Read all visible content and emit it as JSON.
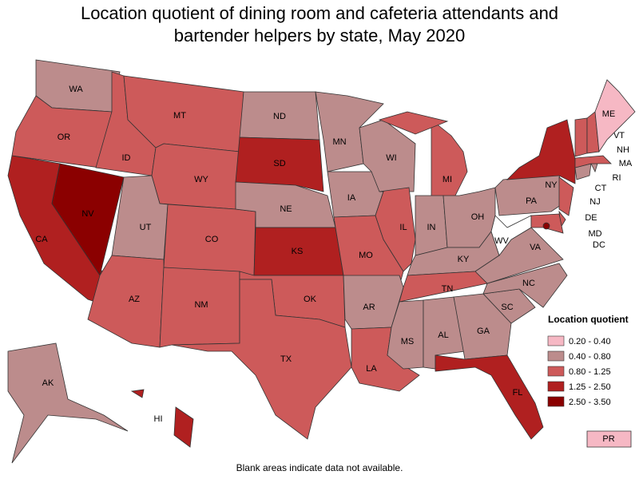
{
  "title": "Location quotient of dining room and cafeteria attendants and bartender helpers by state, May 2020",
  "legend": {
    "title": "Location quotient",
    "bins": [
      {
        "label": "0.20 - 0.40",
        "color": "#f6b8c4"
      },
      {
        "label": "0.40 - 0.80",
        "color": "#bc8c8c"
      },
      {
        "label": "0.80 - 1.25",
        "color": "#cd5a5a"
      },
      {
        "label": "1.25 - 2.50",
        "color": "#b02020"
      },
      {
        "label": "2.50 - 3.50",
        "color": "#8b0000"
      }
    ]
  },
  "states": [
    {
      "label": "WA",
      "bin": 1
    },
    {
      "label": "OR",
      "bin": 2
    },
    {
      "label": "CA",
      "bin": 3
    },
    {
      "label": "NV",
      "bin": 4
    },
    {
      "label": "ID",
      "bin": 2
    },
    {
      "label": "MT",
      "bin": 2
    },
    {
      "label": "WY",
      "bin": 2
    },
    {
      "label": "UT",
      "bin": 1
    },
    {
      "label": "CO",
      "bin": 2
    },
    {
      "label": "AZ",
      "bin": 2
    },
    {
      "label": "NM",
      "bin": 2
    },
    {
      "label": "ND",
      "bin": 1
    },
    {
      "label": "SD",
      "bin": 3
    },
    {
      "label": "NE",
      "bin": 1
    },
    {
      "label": "KS",
      "bin": 3
    },
    {
      "label": "OK",
      "bin": 2
    },
    {
      "label": "TX",
      "bin": 2
    },
    {
      "label": "MN",
      "bin": 1
    },
    {
      "label": "IA",
      "bin": 1
    },
    {
      "label": "MO",
      "bin": 2
    },
    {
      "label": "AR",
      "bin": 1
    },
    {
      "label": "LA",
      "bin": 2
    },
    {
      "label": "WI",
      "bin": 1
    },
    {
      "label": "IL",
      "bin": 2
    },
    {
      "label": "MI",
      "bin": 2
    },
    {
      "label": "IN",
      "bin": 1
    },
    {
      "label": "OH",
      "bin": 1
    },
    {
      "label": "KY",
      "bin": 1
    },
    {
      "label": "TN",
      "bin": 2
    },
    {
      "label": "MS",
      "bin": 1
    },
    {
      "label": "AL",
      "bin": 1
    },
    {
      "label": "GA",
      "bin": 1
    },
    {
      "label": "FL",
      "bin": 3
    },
    {
      "label": "SC",
      "bin": 1
    },
    {
      "label": "NC",
      "bin": 1
    },
    {
      "label": "VA",
      "bin": 1
    },
    {
      "label": "WV",
      "bin": null
    },
    {
      "label": "PA",
      "bin": 1
    },
    {
      "label": "NY",
      "bin": 3
    },
    {
      "label": "NJ",
      "bin": 2
    },
    {
      "label": "DE",
      "bin": 2
    },
    {
      "label": "MD",
      "bin": 2
    },
    {
      "label": "DC",
      "bin": 4
    },
    {
      "label": "CT",
      "bin": 1
    },
    {
      "label": "RI",
      "bin": 1
    },
    {
      "label": "MA",
      "bin": 2
    },
    {
      "label": "VT",
      "bin": 2
    },
    {
      "label": "NH",
      "bin": 2
    },
    {
      "label": "ME",
      "bin": 0
    },
    {
      "label": "AK",
      "bin": 1
    },
    {
      "label": "HI",
      "bin": 3
    },
    {
      "label": "PR",
      "bin": 0
    }
  ],
  "footnote": "Blank areas indicate data not available."
}
